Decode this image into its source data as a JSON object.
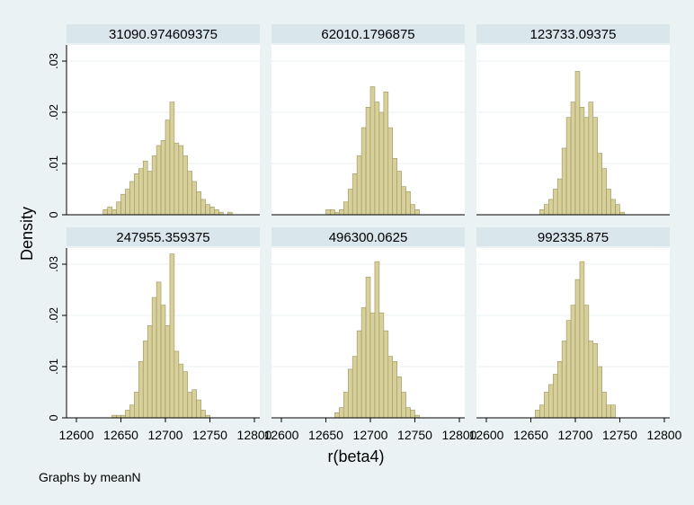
{
  "chart_data": {
    "type": "bar",
    "subtype": "histogram-by-group",
    "xlabel": "r(beta4)",
    "ylabel": "Density",
    "note": "Graphs by meanN",
    "xlim": [
      12600,
      12800
    ],
    "ylim": [
      0,
      0.03
    ],
    "xticks": [
      12600,
      12650,
      12700,
      12750,
      12800
    ],
    "yticks": [
      0,
      0.01,
      0.02,
      0.03
    ],
    "xtick_labels": [
      "12600",
      "12650",
      "12700",
      "12750",
      "12800"
    ],
    "ytick_labels": [
      "0",
      ".01",
      ".02",
      ".03"
    ],
    "bin_width": 5,
    "colors": {
      "bar_fill": "#d8d09a",
      "bar_stroke": "#9c9460",
      "header_bg": "#d9e6eb",
      "background": "#eaf2f3",
      "plot_bg": "#ffffff",
      "grid": "#eaf2f3"
    },
    "panels": [
      {
        "title": "31090.974609375",
        "bin_starts": [
          12630,
          12635,
          12640,
          12645,
          12650,
          12655,
          12660,
          12665,
          12670,
          12675,
          12680,
          12685,
          12690,
          12695,
          12700,
          12705,
          12710,
          12715,
          12720,
          12725,
          12730,
          12735,
          12740,
          12745,
          12750,
          12755,
          12760,
          12765,
          12770
        ],
        "values": [
          0.001,
          0.0015,
          0.001,
          0.0025,
          0.004,
          0.005,
          0.0065,
          0.008,
          0.009,
          0.0105,
          0.0085,
          0.0115,
          0.0135,
          0.0145,
          0.0185,
          0.022,
          0.014,
          0.0135,
          0.0115,
          0.0085,
          0.0065,
          0.0045,
          0.003,
          0.002,
          0.0015,
          0.001,
          0.0005,
          0,
          0.0005
        ]
      },
      {
        "title": "62010.1796875",
        "bin_starts": [
          12650,
          12655,
          12660,
          12665,
          12670,
          12675,
          12680,
          12685,
          12690,
          12695,
          12700,
          12705,
          12710,
          12715,
          12720,
          12725,
          12730,
          12735,
          12740,
          12745,
          12750
        ],
        "values": [
          0.001,
          0.001,
          0.0005,
          0.001,
          0.0025,
          0.005,
          0.008,
          0.0115,
          0.017,
          0.021,
          0.025,
          0.022,
          0.02,
          0.024,
          0.017,
          0.011,
          0.0085,
          0.0055,
          0.0045,
          0.002,
          0.001
        ]
      },
      {
        "title": "123733.09375",
        "bin_starts": [
          12660,
          12665,
          12670,
          12675,
          12680,
          12685,
          12690,
          12695,
          12700,
          12705,
          12710,
          12715,
          12720,
          12725,
          12730,
          12735,
          12740,
          12745,
          12750
        ],
        "values": [
          0.001,
          0.002,
          0.003,
          0.005,
          0.007,
          0.013,
          0.019,
          0.022,
          0.028,
          0.021,
          0.019,
          0.022,
          0.019,
          0.012,
          0.009,
          0.005,
          0.003,
          0.002,
          0.0005
        ]
      },
      {
        "title": "247955.359375",
        "bin_starts": [
          12640,
          12645,
          12650,
          12655,
          12660,
          12665,
          12670,
          12675,
          12680,
          12685,
          12690,
          12695,
          12700,
          12705,
          12710,
          12715,
          12720,
          12725,
          12730,
          12735,
          12740,
          12745
        ],
        "values": [
          0.0005,
          0.0005,
          0.0005,
          0.0015,
          0.0025,
          0.005,
          0.011,
          0.015,
          0.018,
          0.0235,
          0.0265,
          0.022,
          0.018,
          0.032,
          0.013,
          0.0105,
          0.009,
          0.005,
          0.0055,
          0.0035,
          0.0015,
          0.0005
        ]
      },
      {
        "title": "496300.0625",
        "bin_starts": [
          12660,
          12665,
          12670,
          12675,
          12680,
          12685,
          12690,
          12695,
          12700,
          12705,
          12710,
          12715,
          12720,
          12725,
          12730,
          12735,
          12740,
          12745,
          12750
        ],
        "values": [
          0.001,
          0.002,
          0.005,
          0.0095,
          0.012,
          0.017,
          0.0215,
          0.0275,
          0.0205,
          0.0305,
          0.0205,
          0.017,
          0.012,
          0.011,
          0.008,
          0.005,
          0.002,
          0.0015,
          0.0005
        ]
      },
      {
        "title": "992335.875",
        "bin_starts": [
          12655,
          12660,
          12665,
          12670,
          12675,
          12680,
          12685,
          12690,
          12695,
          12700,
          12705,
          12710,
          12715,
          12720,
          12725,
          12730,
          12735,
          12740
        ],
        "values": [
          0.0015,
          0.0025,
          0.005,
          0.0065,
          0.0085,
          0.011,
          0.015,
          0.019,
          0.022,
          0.027,
          0.0305,
          0.022,
          0.015,
          0.0145,
          0.01,
          0.005,
          0.0025,
          0.0025
        ]
      }
    ]
  }
}
